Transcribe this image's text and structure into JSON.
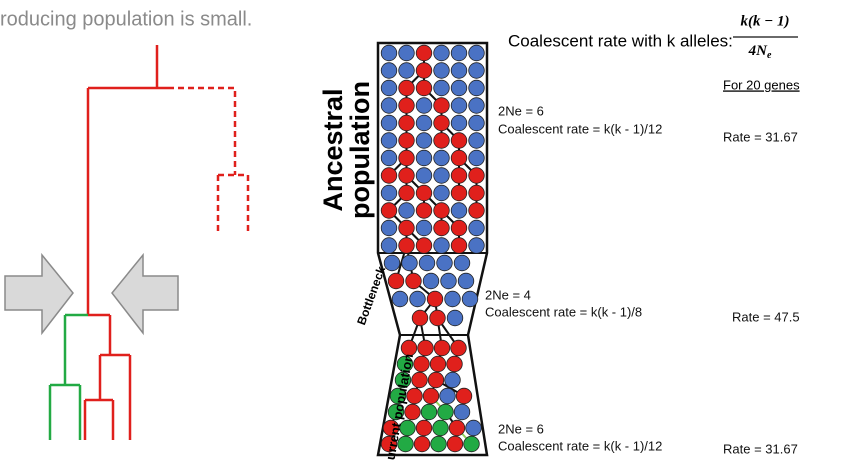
{
  "header_text": "roducing population is small.",
  "formula": {
    "label": "Coalescent rate with k alleles:",
    "numerator": "k(k − 1)",
    "denominator": "4N",
    "subscript": "e"
  },
  "genes_header": "For 20 genes",
  "populations": {
    "ancestral": [
      "Ancestral",
      "population"
    ],
    "bottleneck": "Bottleneck",
    "current": "urrent population"
  },
  "sections": [
    {
      "ne": "2Ne = 6",
      "rate_formula": "Coalescent rate = k(k - 1)/12",
      "rate": "Rate = 31.67"
    },
    {
      "ne": "2Ne = 4",
      "rate_formula": "Coalescent rate = k(k - 1)/8",
      "rate": "Rate = 47.5"
    },
    {
      "ne": "2Ne = 6",
      "rate_formula": "Coalescent rate = k(k - 1)/12",
      "rate": "Rate = 31.67"
    }
  ]
}
